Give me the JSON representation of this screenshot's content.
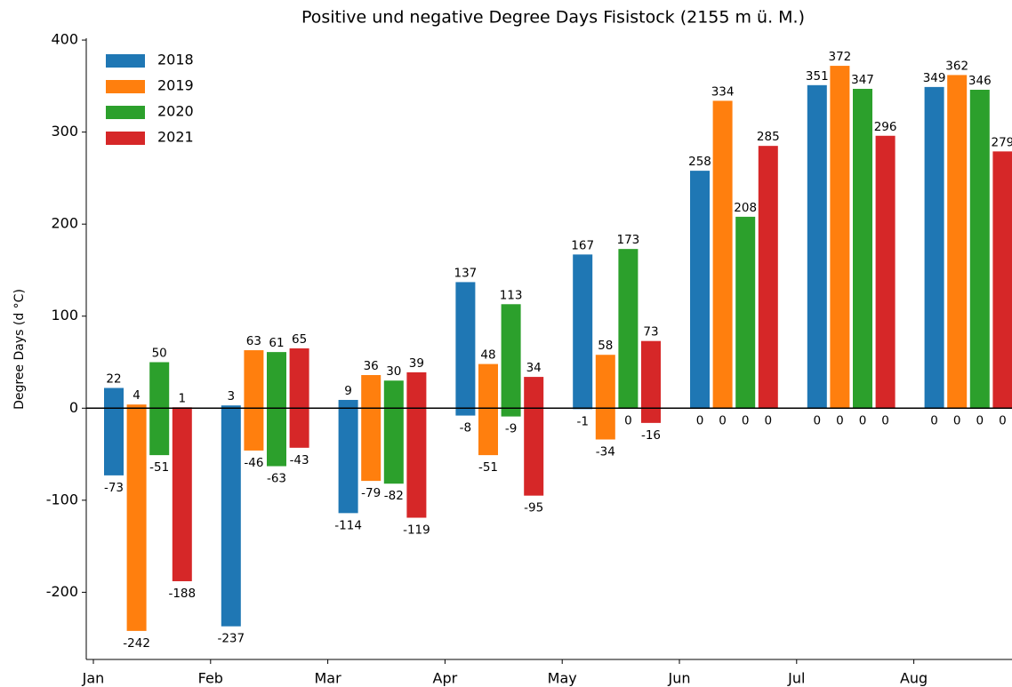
{
  "chart_data": {
    "type": "bar",
    "title": "Positive und negative Degree Days Fisistock (2155 m ü. M.)",
    "y_label": "Degree Days (d °C)",
    "categories": [
      "Jan",
      "Feb",
      "Mar",
      "Apr",
      "May",
      "Jun",
      "Jul",
      "Aug"
    ],
    "series": [
      {
        "name": "2018",
        "color": "#1f77b4",
        "values": [
          22,
          3,
          9,
          137,
          167,
          258,
          351,
          349
        ],
        "negative_values": [
          -73,
          -237,
          -114,
          -8,
          -1,
          0,
          0,
          0
        ]
      },
      {
        "name": "2019",
        "color": "#ff7f0e",
        "values": [
          4,
          63,
          36,
          48,
          58,
          334,
          372,
          362
        ],
        "negative_values": [
          -242,
          -46,
          -79,
          -51,
          -34,
          0,
          0,
          0
        ]
      },
      {
        "name": "2020",
        "color": "#2ca02c",
        "values": [
          50,
          61,
          30,
          113,
          173,
          208,
          347,
          346
        ],
        "negative_values": [
          -51,
          -63,
          -82,
          -9,
          0,
          0,
          0,
          0
        ]
      },
      {
        "name": "2021",
        "color": "#d62728",
        "values": [
          1,
          65,
          39,
          34,
          73,
          285,
          296,
          279
        ],
        "negative_values": [
          -188,
          -43,
          -119,
          -95,
          -16,
          0,
          0,
          0
        ]
      }
    ],
    "ylim": [
      -273,
      402
    ],
    "yticks": [
      -200,
      -100,
      0,
      100,
      200,
      300,
      400
    ],
    "legend": "upper left",
    "zero_line": true
  }
}
